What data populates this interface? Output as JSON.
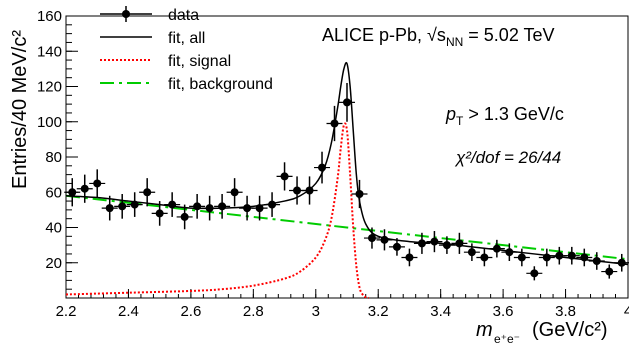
{
  "chart_data": {
    "type": "scatter",
    "xlabel": "m_{e⁺e⁻} (GeV/c²)",
    "ylabel": "Entries/40 MeV/c²",
    "xlim": [
      2.2,
      4.0
    ],
    "ylim": [
      0,
      160
    ],
    "x_ticks": [
      2.2,
      2.4,
      2.6,
      2.8,
      3.0,
      3.2,
      3.4,
      3.6,
      3.8,
      4.0
    ],
    "x_tick_labels": [
      "2.2",
      "2.4",
      "2.6",
      "2.8",
      "3",
      "3.2",
      "3.4",
      "3.6",
      "3.8",
      "4"
    ],
    "y_ticks": [
      20,
      40,
      60,
      80,
      100,
      120,
      140,
      160
    ],
    "y_tick_labels": [
      "20",
      "40",
      "60",
      "80",
      "100",
      "120",
      "140",
      "160"
    ],
    "grid": false,
    "legend_position": "top-left",
    "annotations": {
      "experiment": "ALICE p-Pb, √s",
      "experiment_sub": "NN",
      "experiment_energy": " = 5.02 TeV",
      "pt_cut": " > 1.3 GeV/c",
      "pt_symbol": "p",
      "pt_sub": "T",
      "chi2": "χ²/dof = 26/44"
    },
    "series": [
      {
        "name": "data",
        "style": "points",
        "color": "#000000",
        "x": [
          2.22,
          2.26,
          2.3,
          2.34,
          2.38,
          2.42,
          2.46,
          2.5,
          2.54,
          2.58,
          2.62,
          2.66,
          2.7,
          2.74,
          2.78,
          2.82,
          2.86,
          2.9,
          2.94,
          2.98,
          3.02,
          3.06,
          3.1,
          3.14,
          3.18,
          3.22,
          3.26,
          3.3,
          3.34,
          3.38,
          3.42,
          3.46,
          3.5,
          3.54,
          3.58,
          3.62,
          3.66,
          3.7,
          3.74,
          3.78,
          3.82,
          3.86,
          3.9,
          3.94,
          3.98
        ],
        "y": [
          60,
          62,
          65,
          51,
          52,
          53,
          60,
          48,
          53,
          46,
          52,
          51,
          52,
          60,
          51,
          51,
          53,
          69,
          61,
          61,
          74,
          99,
          111,
          59,
          34,
          33,
          29,
          23,
          31,
          32,
          30,
          31,
          26,
          23,
          28,
          26,
          23,
          14,
          23,
          24,
          24,
          23,
          21,
          15,
          20
        ],
        "yerr": [
          8,
          8,
          8,
          7,
          7,
          7,
          8,
          7,
          7,
          7,
          7,
          7,
          7,
          8,
          7,
          7,
          7,
          8,
          8,
          8,
          9,
          10,
          11,
          8,
          6,
          6,
          5,
          5,
          6,
          6,
          5,
          6,
          5,
          5,
          5,
          5,
          5,
          4,
          5,
          5,
          5,
          5,
          5,
          4,
          5
        ]
      },
      {
        "name": "fit, all",
        "style": "solid",
        "color": "#000000",
        "x": [
          2.2,
          2.3,
          2.4,
          2.5,
          2.6,
          2.7,
          2.8,
          2.9,
          2.95,
          3.0,
          3.03,
          3.05,
          3.07,
          3.08,
          3.09,
          3.1,
          3.11,
          3.12,
          3.13,
          3.14,
          3.16,
          3.2,
          3.3,
          3.4,
          3.5,
          3.6,
          3.7,
          3.8,
          3.9,
          4.0
        ],
        "y": [
          58,
          57,
          55,
          53,
          51,
          51,
          52,
          55,
          58,
          65,
          75,
          88,
          108,
          120,
          130,
          133,
          120,
          95,
          70,
          55,
          42,
          35,
          32,
          31,
          29,
          27,
          25,
          23,
          21,
          19
        ]
      },
      {
        "name": "fit, signal",
        "style": "dotted",
        "color": "#ff0000",
        "x": [
          2.2,
          2.4,
          2.6,
          2.7,
          2.8,
          2.9,
          2.95,
          3.0,
          3.03,
          3.05,
          3.07,
          3.08,
          3.09,
          3.1,
          3.11,
          3.12,
          3.13,
          3.14,
          3.15,
          3.16,
          3.17
        ],
        "y": [
          2,
          3,
          4,
          5,
          7,
          11,
          15,
          23,
          33,
          45,
          68,
          85,
          98,
          95,
          70,
          40,
          18,
          6,
          2,
          0.5,
          0
        ]
      },
      {
        "name": "fit, background",
        "style": "dash-dot",
        "color": "#00cc00",
        "x": [
          2.2,
          4.0
        ],
        "y": [
          58,
          22
        ]
      }
    ]
  }
}
